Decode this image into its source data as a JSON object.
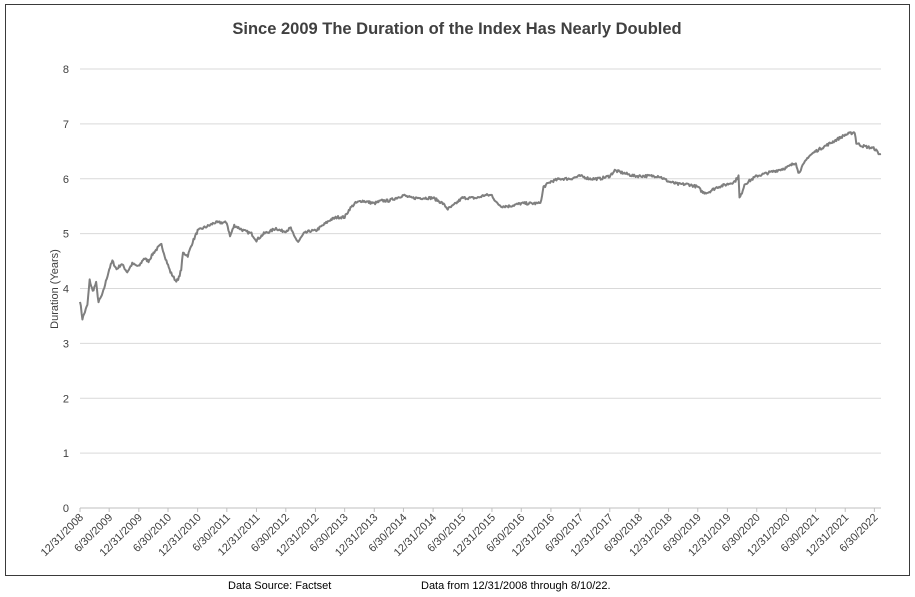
{
  "chart_data": {
    "type": "line",
    "title": "Since 2009 The Duration of the Index Has Nearly Doubled",
    "xlabel": "",
    "ylabel": "Duration (Years)",
    "ylim": [
      0,
      8
    ],
    "yticks": [
      0,
      1,
      2,
      3,
      4,
      5,
      6,
      7,
      8
    ],
    "grid": "horizontal",
    "legend": "none",
    "line_color": "#7f7f7f",
    "xticks": [
      "12/31/2008",
      "6/30/2009",
      "12/31/2009",
      "6/30/2010",
      "12/31/2010",
      "6/30/2011",
      "12/31/2011",
      "6/30/2012",
      "12/31/2012",
      "6/30/2013",
      "12/31/2013",
      "6/30/2014",
      "12/31/2014",
      "6/30/2015",
      "12/31/2015",
      "6/30/2016",
      "12/31/2016",
      "6/30/2017",
      "12/31/2017",
      "6/30/2018",
      "12/31/2018",
      "6/30/2019",
      "12/31/2019",
      "6/30/2020",
      "12/31/2020",
      "6/30/2021",
      "12/31/2021",
      "6/30/2022"
    ],
    "x_start": "12/31/2008",
    "x_end": "8/10/2022",
    "series": [
      {
        "points": [
          [
            "12/31/2008",
            3.78
          ],
          [
            "1/15/2009",
            3.45
          ],
          [
            "2/15/2009",
            3.7
          ],
          [
            "3/1/2009",
            4.15
          ],
          [
            "3/20/2009",
            3.95
          ],
          [
            "4/10/2009",
            4.1
          ],
          [
            "4/25/2009",
            3.75
          ],
          [
            "5/20/2009",
            3.9
          ],
          [
            "6/30/2009",
            4.35
          ],
          [
            "7/20/2009",
            4.5
          ],
          [
            "8/15/2009",
            4.35
          ],
          [
            "9/15/2009",
            4.45
          ],
          [
            "10/20/2009",
            4.3
          ],
          [
            "11/20/2009",
            4.45
          ],
          [
            "12/31/2009",
            4.4
          ],
          [
            "1/31/2010",
            4.55
          ],
          [
            "3/1/2010",
            4.5
          ],
          [
            "4/1/2010",
            4.65
          ],
          [
            "5/1/2010",
            4.75
          ],
          [
            "5/20/2010",
            4.8
          ],
          [
            "6/15/2010",
            4.55
          ],
          [
            "7/15/2010",
            4.3
          ],
          [
            "8/15/2010",
            4.15
          ],
          [
            "9/1/2010",
            4.15
          ],
          [
            "9/20/2010",
            4.35
          ],
          [
            "10/1/2010",
            4.65
          ],
          [
            "10/31/2010",
            4.6
          ],
          [
            "11/30/2010",
            4.85
          ],
          [
            "12/31/2010",
            5.05
          ],
          [
            "2/1/2011",
            5.1
          ],
          [
            "3/15/2011",
            5.15
          ],
          [
            "4/15/2011",
            5.2
          ],
          [
            "5/31/2011",
            5.2
          ],
          [
            "6/30/2011",
            5.2
          ],
          [
            "7/20/2011",
            4.95
          ],
          [
            "8/15/2011",
            5.15
          ],
          [
            "9/15/2011",
            5.1
          ],
          [
            "10/15/2011",
            5.05
          ],
          [
            "11/30/2011",
            5.0
          ],
          [
            "12/31/2011",
            4.88
          ],
          [
            "2/15/2012",
            5.0
          ],
          [
            "3/31/2012",
            5.05
          ],
          [
            "4/30/2012",
            5.1
          ],
          [
            "5/31/2012",
            5.05
          ],
          [
            "6/30/2012",
            5.05
          ],
          [
            "7/31/2012",
            5.1
          ],
          [
            "8/20/2012",
            4.95
          ],
          [
            "9/15/2012",
            4.85
          ],
          [
            "10/20/2012",
            5.0
          ],
          [
            "11/30/2012",
            5.05
          ],
          [
            "12/31/2012",
            5.05
          ],
          [
            "2/15/2013",
            5.15
          ],
          [
            "4/1/2013",
            5.25
          ],
          [
            "5/15/2013",
            5.3
          ],
          [
            "6/30/2013",
            5.3
          ],
          [
            "7/31/2013",
            5.45
          ],
          [
            "9/1/2013",
            5.55
          ],
          [
            "10/15/2013",
            5.6
          ],
          [
            "12/31/2013",
            5.55
          ],
          [
            "2/15/2014",
            5.6
          ],
          [
            "4/1/2014",
            5.6
          ],
          [
            "5/15/2014",
            5.65
          ],
          [
            "6/30/2014",
            5.7
          ],
          [
            "8/15/2014",
            5.65
          ],
          [
            "10/1/2014",
            5.65
          ],
          [
            "11/15/2014",
            5.65
          ],
          [
            "12/31/2014",
            5.65
          ],
          [
            "1/31/2015",
            5.6
          ],
          [
            "3/1/2015",
            5.55
          ],
          [
            "4/1/2015",
            5.45
          ],
          [
            "5/1/2015",
            5.5
          ],
          [
            "6/30/2015",
            5.65
          ],
          [
            "8/15/2015",
            5.65
          ],
          [
            "9/30/2015",
            5.65
          ],
          [
            "11/15/2015",
            5.7
          ],
          [
            "12/31/2015",
            5.7
          ],
          [
            "1/31/2016",
            5.55
          ],
          [
            "3/1/2016",
            5.5
          ],
          [
            "4/15/2016",
            5.5
          ],
          [
            "6/30/2016",
            5.55
          ],
          [
            "8/15/2016",
            5.55
          ],
          [
            "10/15/2016",
            5.55
          ],
          [
            "11/1/2016",
            5.6
          ],
          [
            "11/15/2016",
            5.85
          ],
          [
            "12/31/2016",
            5.95
          ],
          [
            "2/28/2017",
            6.0
          ],
          [
            "4/30/2017",
            6.0
          ],
          [
            "6/30/2017",
            6.05
          ],
          [
            "8/31/2017",
            6.0
          ],
          [
            "10/31/2017",
            6.0
          ],
          [
            "12/31/2017",
            6.05
          ],
          [
            "1/31/2018",
            6.15
          ],
          [
            "3/31/2018",
            6.1
          ],
          [
            "5/31/2018",
            6.05
          ],
          [
            "6/30/2018",
            6.05
          ],
          [
            "8/31/2018",
            6.05
          ],
          [
            "10/31/2018",
            6.05
          ],
          [
            "12/31/2018",
            5.95
          ],
          [
            "2/28/2019",
            5.9
          ],
          [
            "4/30/2019",
            5.9
          ],
          [
            "6/30/2019",
            5.85
          ],
          [
            "7/31/2019",
            5.75
          ],
          [
            "8/31/2019",
            5.75
          ],
          [
            "9/30/2019",
            5.8
          ],
          [
            "10/31/2019",
            5.85
          ],
          [
            "12/31/2019",
            5.9
          ],
          [
            "2/15/2020",
            5.95
          ],
          [
            "3/9/2020",
            6.05
          ],
          [
            "3/15/2020",
            5.65
          ],
          [
            "3/25/2020",
            5.7
          ],
          [
            "4/15/2020",
            5.9
          ],
          [
            "6/30/2020",
            6.05
          ],
          [
            "8/31/2020",
            6.1
          ],
          [
            "10/31/2020",
            6.15
          ],
          [
            "12/31/2020",
            6.2
          ],
          [
            "1/31/2021",
            6.25
          ],
          [
            "2/28/2021",
            6.3
          ],
          [
            "3/15/2021",
            6.1
          ],
          [
            "4/15/2021",
            6.25
          ],
          [
            "5/15/2021",
            6.4
          ],
          [
            "6/30/2021",
            6.5
          ],
          [
            "8/31/2021",
            6.6
          ],
          [
            "10/31/2021",
            6.7
          ],
          [
            "12/31/2021",
            6.8
          ],
          [
            "2/28/2022",
            6.85
          ],
          [
            "3/10/2022",
            6.65
          ],
          [
            "4/15/2022",
            6.6
          ],
          [
            "6/30/2022",
            6.55
          ],
          [
            "7/31/2022",
            6.45
          ],
          [
            "8/10/2022",
            6.45
          ]
        ]
      }
    ]
  },
  "footer": {
    "source": "Data Source: Factset",
    "range": "Data from 12/31/2008 through 8/10/22."
  }
}
